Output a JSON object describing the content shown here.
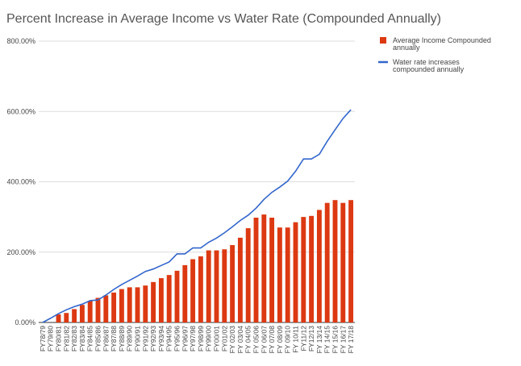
{
  "chart_data": {
    "type": "bar-line",
    "title": "Percent Increase in Average Income vs Water Rate (Compounded Annually)",
    "categories": [
      "FY78/79",
      "FY79/80",
      "FY80/81",
      "FY81/82",
      "FY82/83",
      "FY83/84",
      "FY84/85",
      "FY85/86",
      "FY86/87",
      "FY87/88",
      "FY88/89",
      "FY89/90",
      "FY90/91",
      "FY91/92",
      "FY92/93",
      "FY93/94",
      "FY94/95",
      "FY95/96",
      "FY96/97",
      "FY97/98",
      "FY98/99",
      "FY99/00",
      "FY00/01",
      "FY01/02",
      "FY 02/03",
      "FY 03/04",
      "FY 04/05",
      "FY 05/06",
      "FY 06/07",
      "FY 07/08",
      "FY 08/09",
      "FY 09/10",
      "FY 10/11",
      "FY11/12",
      "FY12/13",
      "FY 13/14",
      "FY 14/15",
      "FY 15/16",
      "FY 16/17",
      "FY 17/18"
    ],
    "series": [
      {
        "name": "Average Income Compounded annually",
        "color": "#dc3912",
        "kind": "bar",
        "values": [
          0,
          0,
          23,
          27,
          38,
          50,
          61,
          70,
          77,
          85,
          95,
          100,
          100,
          105,
          115,
          126,
          135,
          147,
          163,
          180,
          188,
          205,
          205,
          208,
          220,
          241,
          268,
          298,
          307,
          298,
          270,
          270,
          285,
          300,
          303,
          320,
          340,
          348,
          340,
          348
        ]
      },
      {
        "name": "Water rate increases compounded annually",
        "color": "#3366cc",
        "kind": "line",
        "values": [
          0,
          12,
          25,
          36,
          45,
          52,
          62,
          64,
          78,
          94,
          108,
          120,
          132,
          145,
          152,
          162,
          172,
          195,
          195,
          212,
          212,
          228,
          240,
          255,
          272,
          290,
          305,
          325,
          350,
          370,
          385,
          402,
          430,
          465,
          465,
          478,
          515,
          548,
          580,
          605
        ]
      }
    ],
    "ylim": [
      0,
      800
    ],
    "yticks": [
      {
        "value": 0,
        "label": "0.00%"
      },
      {
        "value": 200,
        "label": "200.00%"
      },
      {
        "value": 400,
        "label": "400.00%"
      },
      {
        "value": 600,
        "label": "600.00%"
      },
      {
        "value": 800,
        "label": "800.00%"
      }
    ],
    "grid": true,
    "legend": "right"
  }
}
